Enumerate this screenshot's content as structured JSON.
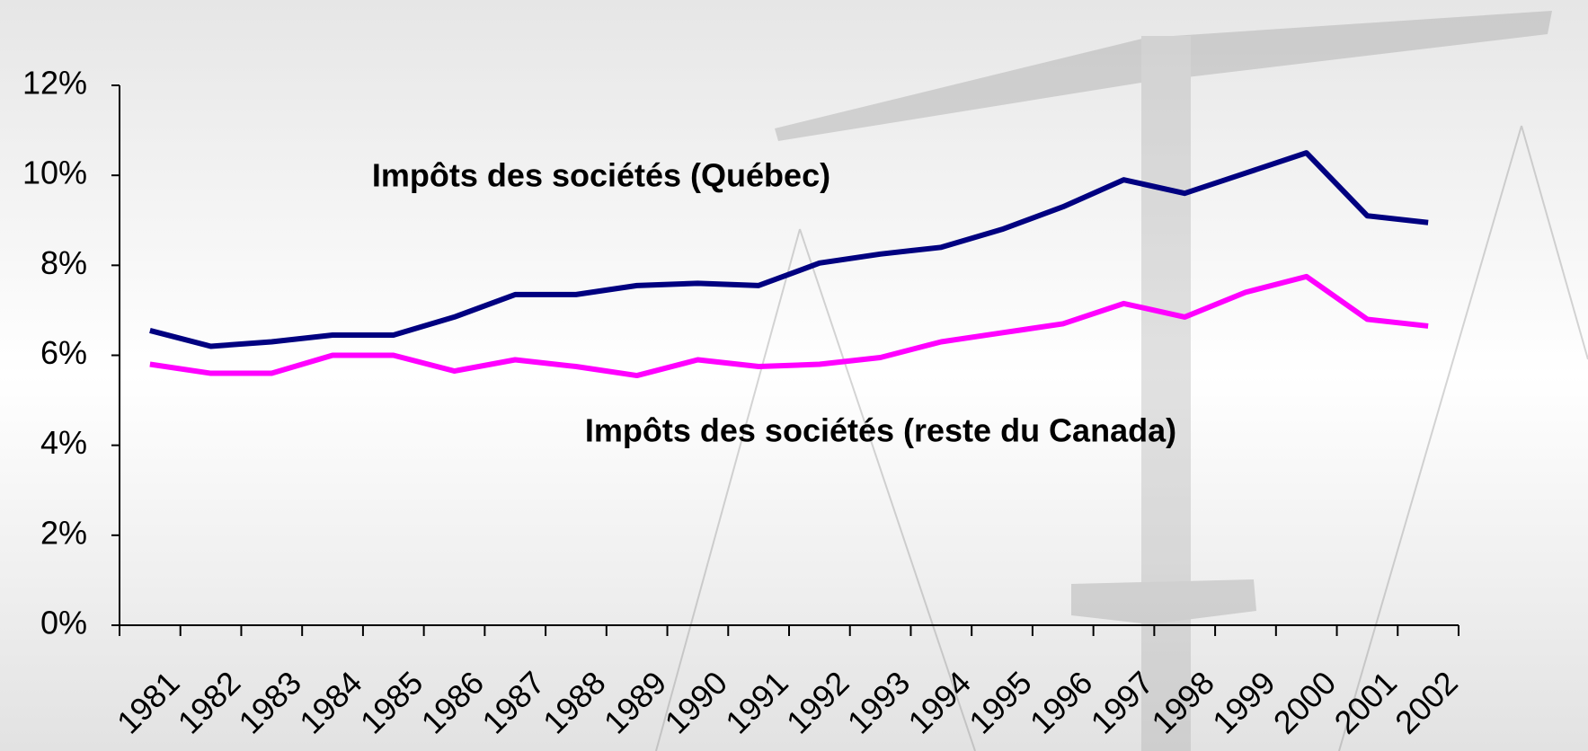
{
  "chart_data": {
    "type": "line",
    "categories": [
      "1981",
      "1982",
      "1983",
      "1984",
      "1985",
      "1986",
      "1987",
      "1988",
      "1989",
      "1990",
      "1991",
      "1992",
      "1993",
      "1994",
      "1995",
      "1996",
      "1997",
      "1998",
      "1999",
      "2000",
      "2001",
      "2002"
    ],
    "series": [
      {
        "name": "Impôts des sociétés (Québec)",
        "color": "#000080",
        "values": [
          6.55,
          6.2,
          6.3,
          6.45,
          6.45,
          6.85,
          7.35,
          7.35,
          7.55,
          7.6,
          7.55,
          8.05,
          8.25,
          8.4,
          8.8,
          9.3,
          9.9,
          9.6,
          10.05,
          10.5,
          9.1,
          8.95
        ]
      },
      {
        "name": "Impôts des sociétés (reste du Canada)",
        "color": "#ff00ff",
        "values": [
          5.8,
          5.6,
          5.6,
          6.0,
          6.0,
          5.65,
          5.9,
          5.75,
          5.55,
          5.9,
          5.75,
          5.8,
          5.95,
          6.3,
          6.5,
          6.7,
          7.15,
          6.85,
          7.4,
          7.75,
          6.8,
          6.65
        ]
      }
    ],
    "ylim": [
      0,
      12
    ],
    "yticks": [
      {
        "value": 0,
        "label": "0%"
      },
      {
        "value": 2,
        "label": "2%"
      },
      {
        "value": 4,
        "label": "4%"
      },
      {
        "value": 6,
        "label": "6%"
      },
      {
        "value": 8,
        "label": "8%"
      },
      {
        "value": 10,
        "label": "10%"
      },
      {
        "value": 12,
        "label": "12%"
      }
    ]
  }
}
